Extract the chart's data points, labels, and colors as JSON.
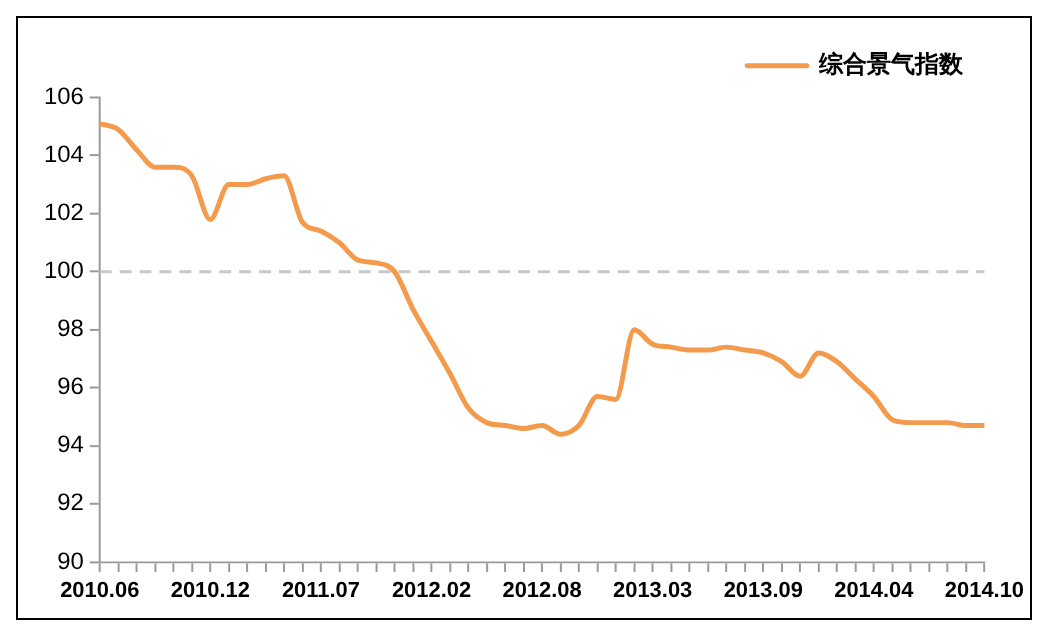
{
  "chart_data": {
    "type": "line",
    "categories": [
      "2010.06",
      null,
      null,
      null,
      null,
      null,
      "2010.12",
      null,
      null,
      null,
      null,
      null,
      "2011.07",
      null,
      null,
      null,
      null,
      null,
      "2012.02",
      null,
      null,
      null,
      null,
      null,
      "2012.08",
      null,
      null,
      null,
      null,
      null,
      "2013.03",
      null,
      null,
      null,
      null,
      null,
      "2013.09",
      null,
      null,
      null,
      null,
      null,
      "2014.04",
      null,
      null,
      null,
      null,
      null,
      "2014.10"
    ],
    "series": [
      {
        "name": "综合景气指数",
        "color": "#f39a4c",
        "values": [
          105.1,
          104.9,
          104.2,
          103.6,
          103.6,
          103.3,
          101.8,
          103.0,
          103.0,
          103.2,
          103.3,
          101.7,
          101.4,
          101.0,
          100.4,
          100.3,
          100.0,
          98.7,
          97.6,
          96.5,
          95.3,
          94.8,
          94.7,
          94.6,
          94.7,
          94.4,
          94.7,
          95.7,
          95.6,
          98.0,
          97.5,
          97.4,
          97.3,
          97.3,
          97.4,
          97.3,
          97.2,
          96.9,
          96.4,
          97.2,
          96.9,
          96.3,
          95.7,
          94.9,
          94.8,
          94.8,
          94.8,
          94.7,
          94.7
        ]
      }
    ],
    "ylim": [
      90,
      106
    ],
    "yticks": [
      90,
      92,
      94,
      96,
      98,
      100,
      102,
      104,
      106
    ],
    "ref_lines": [
      {
        "axis": "y",
        "value": 100,
        "color": "#c8c8c8",
        "line_style": "dashed"
      }
    ],
    "grid": false,
    "legend": "top right",
    "marker": "none",
    "line_style": "solid"
  }
}
